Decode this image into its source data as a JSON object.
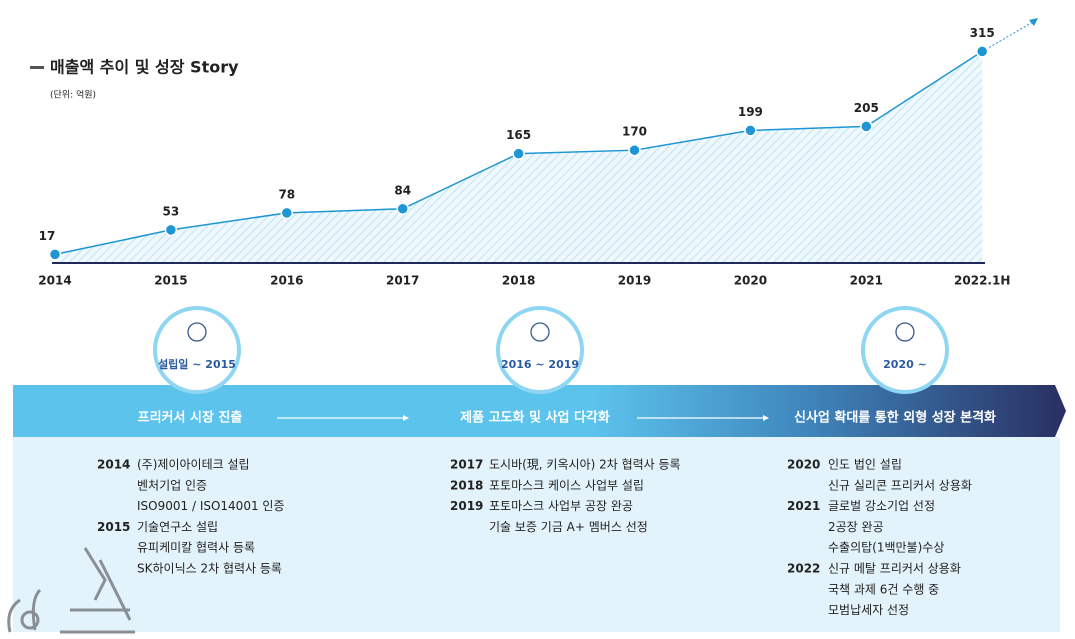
{
  "chart_data": {
    "type": "area",
    "title": "매출액 추이 및 성장 Story",
    "subtitle": "(단위: 억원)",
    "categories": [
      "2014",
      "2015",
      "2016",
      "2017",
      "2018",
      "2019",
      "2020",
      "2021",
      "2022.1H"
    ],
    "values": [
      17,
      53,
      78,
      84,
      165,
      170,
      199,
      205,
      315
    ],
    "color": "#1e95d4",
    "ylim": [
      0,
      320
    ]
  },
  "timeline": {
    "phases": [
      {
        "period": "설립일 ~ 2015",
        "title": "프리커서 시장 진출",
        "events": [
          {
            "year": "2014",
            "items": [
              "(주)제이아이테크 설립",
              "벤처기업 인증",
              "ISO9001 / ISO14001 인증"
            ]
          },
          {
            "year": "2015",
            "items": [
              "기술연구소 설립",
              "유피케미칼 협력사 등록",
              "SK하이닉스 2차 협력사 등록"
            ]
          }
        ]
      },
      {
        "period": "2016 ~ 2019",
        "title": "제품 고도화 및 사업 다각화",
        "events": [
          {
            "year": "2017",
            "items": [
              "도시바(現, 키옥시아) 2차 협력사 등록"
            ]
          },
          {
            "year": "2018",
            "items": [
              "포토마스크 케이스 사업부 설립"
            ]
          },
          {
            "year": "2019",
            "items": [
              "포토마스크 사업부 공장 완공",
              "기술 보증 기금 A+ 멤버스 선정"
            ]
          }
        ]
      },
      {
        "period": "2020 ~",
        "title": "신사업 확대를 통한 외형 성장 본격화",
        "events": [
          {
            "year": "2020",
            "items": [
              "인도 법인 설립",
              "신규 실리콘 프리커서 상용화"
            ]
          },
          {
            "year": "2021",
            "items": [
              "글로벌 강소기업 선정",
              "2공장 완공",
              "수출의탑(1백만불)수상"
            ]
          },
          {
            "year": "2022",
            "items": [
              "신규 메탈 프리커서 상용화",
              "국책 과제 6건 수행 중",
              "모범납세자 선정"
            ]
          }
        ]
      }
    ]
  }
}
